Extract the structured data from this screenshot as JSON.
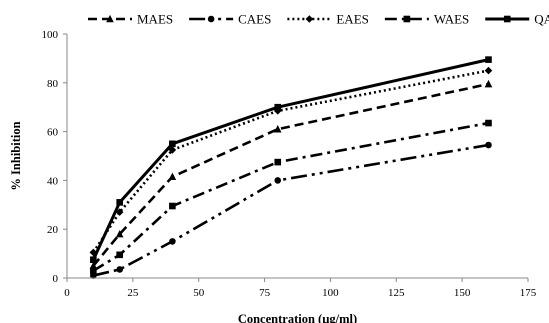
{
  "chart_data": {
    "type": "line",
    "title": "",
    "xlabel": "Concentration (µg/ml)",
    "ylabel": "% Inhibition",
    "xlim": [
      0,
      175
    ],
    "ylim": [
      0,
      100
    ],
    "xticks": [
      0,
      25,
      50,
      75,
      100,
      125,
      150,
      175
    ],
    "yticks": [
      0,
      20,
      40,
      60,
      80,
      100
    ],
    "grid": false,
    "legend_position": "top",
    "x": [
      10,
      20,
      40,
      80,
      160
    ],
    "series": [
      {
        "name": "MAES",
        "values": [
          5,
          18,
          41.5,
          61,
          79.5
        ],
        "marker": "triangle",
        "dash": "dash",
        "color": "#000000"
      },
      {
        "name": "CAES",
        "values": [
          1,
          3.5,
          15,
          40,
          54.5
        ],
        "marker": "circle",
        "dash": "long-dash-dot-dot",
        "color": "#000000"
      },
      {
        "name": "EAES",
        "values": [
          10.5,
          27,
          52.5,
          68.5,
          85
        ],
        "marker": "diamond",
        "dash": "dot",
        "color": "#000000"
      },
      {
        "name": "WAES",
        "values": [
          3,
          9.5,
          29.5,
          47.5,
          63.5
        ],
        "marker": "square",
        "dash": "dash-dot",
        "color": "#000000"
      },
      {
        "name": "QA",
        "values": [
          7.5,
          31,
          55,
          70,
          89.5
        ],
        "marker": "square",
        "dash": "solid",
        "color": "#000000"
      }
    ]
  }
}
